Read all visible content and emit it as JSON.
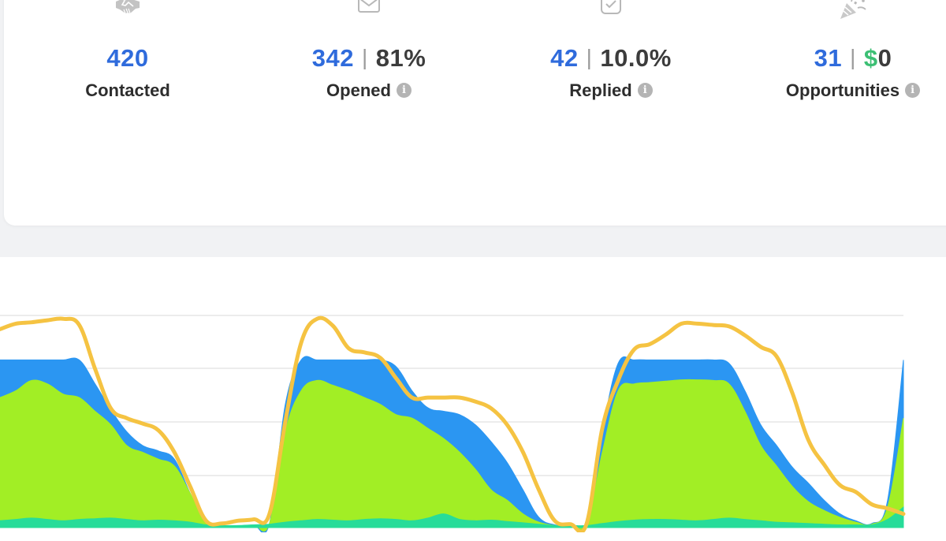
{
  "stats": {
    "contacted": {
      "value": "420",
      "label": "Contacted",
      "icon": "handshake-icon"
    },
    "opened": {
      "value": "342",
      "separator": "|",
      "percent": "81%",
      "label": "Opened",
      "icon": "envelope-icon",
      "info_icon": "info-icon"
    },
    "replied": {
      "value": "42",
      "separator": "|",
      "percent": "10.0%",
      "label": "Replied",
      "icon": "checkbox-icon",
      "info_icon": "info-icon"
    },
    "opportunities": {
      "value": "31",
      "separator": "|",
      "currency": "$",
      "amount": "0",
      "label": "Opportunities",
      "icon": "party-popper-icon",
      "info_icon": "info-icon"
    }
  },
  "colors": {
    "accent_blue": "#2f6bdc",
    "money_green": "#3cbf74",
    "series_blue": "#2b96f2",
    "series_lime": "#a2ee25",
    "series_teal": "#27dc99",
    "series_yellow": "#f5c342"
  },
  "chart_data": {
    "type": "area",
    "x": [
      0,
      2,
      4,
      6,
      8,
      10,
      12,
      14,
      16,
      18,
      20,
      22,
      24,
      26,
      28,
      30,
      32,
      34,
      36,
      38,
      40,
      42,
      44,
      46,
      48,
      50,
      52,
      54,
      56,
      58,
      60,
      62,
      64,
      66,
      68,
      70,
      72,
      74,
      76,
      78,
      80,
      82,
      84,
      86,
      88,
      90,
      92,
      94,
      96,
      98,
      100,
      102,
      104,
      106,
      108,
      110,
      112,
      114
    ],
    "ylim": [
      0,
      310
    ],
    "grid": true,
    "series": [
      {
        "kind": "line",
        "color": "#f5c342",
        "values": [
          290,
          298,
          300,
          303,
          305,
          296,
          232,
          174,
          160,
          152,
          142,
          110,
          60,
          10,
          6,
          10,
          12,
          20,
          155,
          270,
          305,
          295,
          262,
          256,
          248,
          218,
          190,
          190,
          190,
          190,
          184,
          174,
          150,
          110,
          55,
          10,
          5,
          5,
          145,
          215,
          260,
          268,
          282,
          298,
          298,
          296,
          294,
          281,
          264,
          250,
          196,
          128,
          92,
          62,
          52,
          34,
          28,
          20
        ]
      },
      {
        "kind": "area",
        "color": "#2b96f2",
        "values": [
          245,
          245,
          245,
          245,
          245,
          245,
          210,
          172,
          140,
          120,
          112,
          100,
          50,
          6,
          2,
          2,
          4,
          6,
          180,
          245,
          245,
          245,
          245,
          245,
          245,
          235,
          200,
          175,
          170,
          165,
          150,
          125,
          95,
          55,
          15,
          4,
          2,
          2,
          140,
          240,
          245,
          245,
          245,
          245,
          245,
          245,
          240,
          200,
          150,
          120,
          88,
          65,
          40,
          20,
          10,
          6,
          40,
          245
        ]
      },
      {
        "kind": "area",
        "color": "#a2ee25",
        "values": [
          190,
          200,
          215,
          210,
          195,
          190,
          170,
          150,
          120,
          110,
          100,
          90,
          50,
          6,
          2,
          2,
          4,
          6,
          140,
          200,
          215,
          208,
          200,
          190,
          180,
          165,
          160,
          145,
          130,
          110,
          85,
          55,
          40,
          20,
          8,
          3,
          2,
          2,
          110,
          200,
          210,
          212,
          214,
          216,
          216,
          215,
          210,
          170,
          120,
          90,
          60,
          38,
          25,
          15,
          8,
          5,
          30,
          160
        ]
      },
      {
        "kind": "area",
        "color": "#27dc99",
        "values": [
          10,
          12,
          14,
          12,
          10,
          12,
          13,
          14,
          12,
          10,
          11,
          10,
          8,
          4,
          3,
          3,
          4,
          5,
          8,
          10,
          12,
          11,
          10,
          12,
          13,
          12,
          10,
          14,
          20,
          12,
          10,
          11,
          9,
          7,
          5,
          3,
          3,
          3,
          6,
          9,
          11,
          12,
          12,
          11,
          10,
          12,
          14,
          12,
          10,
          8,
          7,
          6,
          5,
          4,
          4,
          4,
          12,
          30
        ]
      }
    ]
  }
}
